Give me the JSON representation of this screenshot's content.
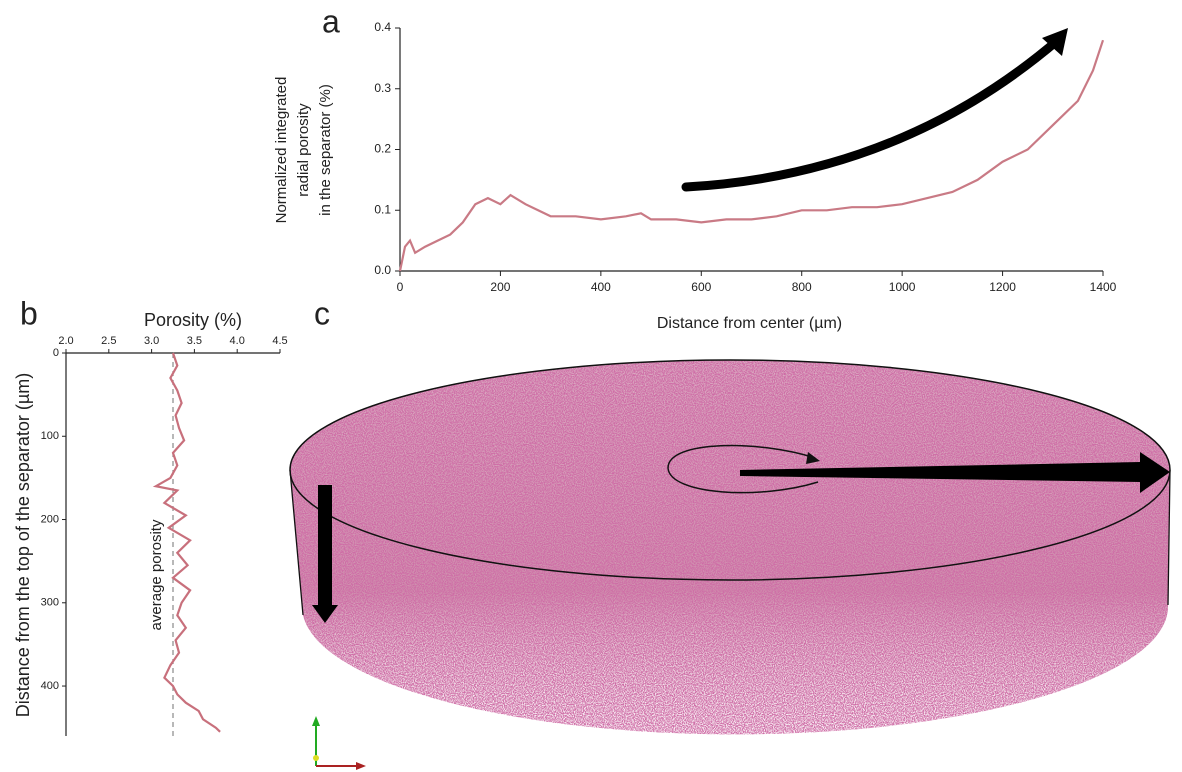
{
  "panels": [
    "a",
    "b",
    "c"
  ],
  "chart_data": [
    {
      "type": "line",
      "xlabel": "Distance from center (µm)",
      "ylabel": [
        "Normalized integrated",
        "radial porosity",
        "in the separator (%)"
      ],
      "color": "#c97a85",
      "x": [
        0,
        10,
        20,
        30,
        50,
        75,
        100,
        125,
        150,
        175,
        200,
        220,
        250,
        275,
        300,
        350,
        400,
        450,
        480,
        500,
        550,
        600,
        650,
        700,
        750,
        800,
        850,
        900,
        950,
        1000,
        1050,
        1100,
        1150,
        1200,
        1250,
        1300,
        1350,
        1380,
        1400
      ],
      "values": [
        0.0,
        0.04,
        0.05,
        0.03,
        0.04,
        0.05,
        0.06,
        0.08,
        0.11,
        0.12,
        0.11,
        0.125,
        0.11,
        0.1,
        0.09,
        0.09,
        0.085,
        0.09,
        0.095,
        0.085,
        0.085,
        0.08,
        0.085,
        0.085,
        0.09,
        0.1,
        0.1,
        0.105,
        0.105,
        0.11,
        0.12,
        0.13,
        0.15,
        0.18,
        0.2,
        0.24,
        0.28,
        0.33,
        0.38
      ],
      "xlim": [
        0,
        1400
      ],
      "xticks": [
        0,
        200,
        400,
        600,
        800,
        1000,
        1200,
        1400
      ],
      "ylim": [
        0,
        0.4
      ],
      "yticks": [
        {
          "value": 0,
          "label": "0.0"
        },
        0.1,
        0.2,
        0.3,
        0.4
      ]
    },
    {
      "type": "line",
      "orientation": "vertical",
      "xlabel": "Distance from the top of the separator (µm)",
      "ylabel": "Porosity (%)",
      "color": "#c8707c",
      "x": [
        0,
        15,
        30,
        45,
        60,
        75,
        90,
        105,
        120,
        135,
        150,
        160,
        165,
        180,
        195,
        210,
        225,
        240,
        255,
        270,
        285,
        300,
        315,
        330,
        345,
        360,
        375,
        390,
        400,
        410,
        420,
        430,
        440,
        450,
        455
      ],
      "values": [
        3.25,
        3.3,
        3.22,
        3.3,
        3.35,
        3.28,
        3.32,
        3.38,
        3.25,
        3.3,
        3.22,
        3.05,
        3.3,
        3.15,
        3.4,
        3.2,
        3.45,
        3.3,
        3.42,
        3.25,
        3.45,
        3.35,
        3.3,
        3.4,
        3.28,
        3.32,
        3.22,
        3.15,
        3.25,
        3.3,
        3.4,
        3.55,
        3.6,
        3.75,
        3.8
      ],
      "xlim": [
        0,
        460
      ],
      "xticks": [
        0,
        100,
        200,
        300,
        400
      ],
      "ylim": [
        2,
        4.5
      ],
      "yticks": [
        {
          "value": 2,
          "label": "2.0"
        },
        2.5,
        {
          "value": 3,
          "label": "3.0"
        },
        3.5,
        {
          "value": 4,
          "label": "4.0"
        },
        4.5
      ],
      "average": 3.25,
      "annotation": "average porosity"
    }
  ]
}
